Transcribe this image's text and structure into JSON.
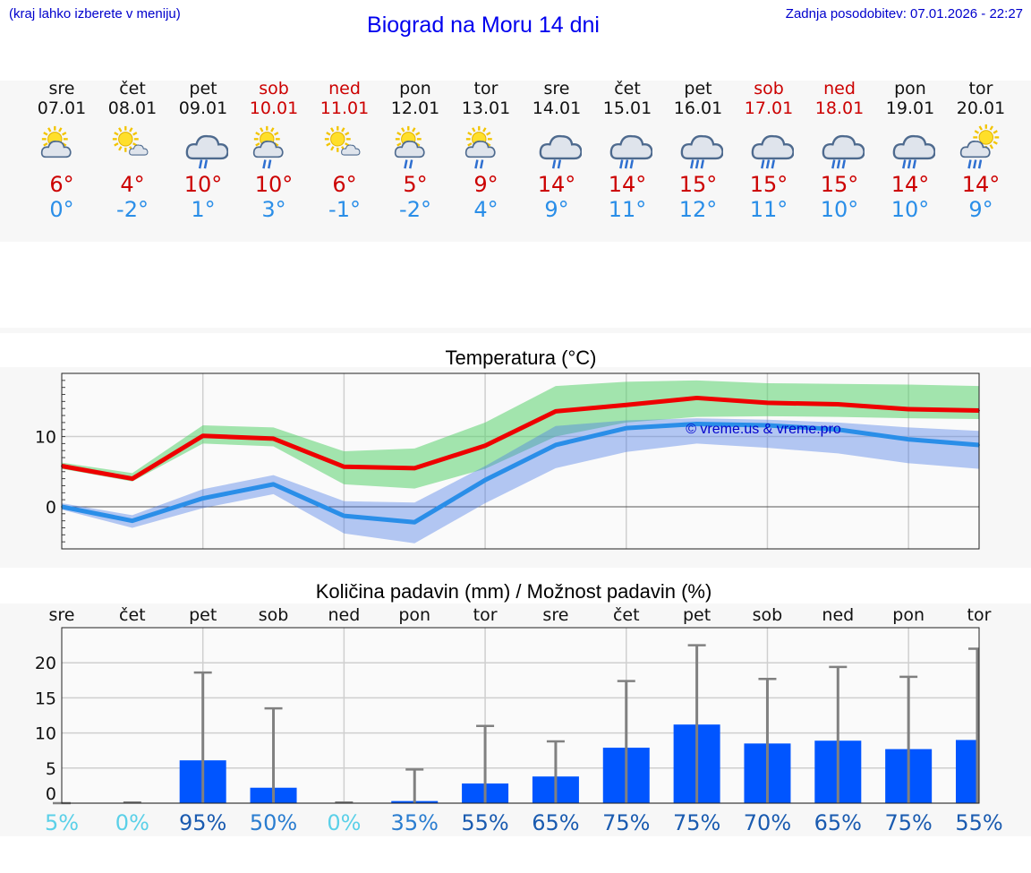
{
  "header": {
    "note_left": "(kraj lahko izberete v meniju)",
    "title": "Biograd na Moru 14 dni",
    "updated": "Zadnja posodobitev: 07.01.2026 - 22:27"
  },
  "colors": {
    "link_blue": "#0000ee",
    "max_temp": "#cc0000",
    "min_temp": "#2a8ee8",
    "bar": "#0055ff",
    "weekend": "#cc0000"
  },
  "days": [
    {
      "name": "sre",
      "date": "07.01",
      "weekend": false,
      "icon": "sun-cloud-icon",
      "max": "6°",
      "min": "0°"
    },
    {
      "name": "čet",
      "date": "08.01",
      "weekend": false,
      "icon": "sun-small-cloud-icon",
      "max": "4°",
      "min": "-2°"
    },
    {
      "name": "pet",
      "date": "09.01",
      "weekend": false,
      "icon": "cloud-rain-icon",
      "max": "10°",
      "min": "1°"
    },
    {
      "name": "sob",
      "date": "10.01",
      "weekend": true,
      "icon": "sun-cloud-rain-icon",
      "max": "10°",
      "min": "3°"
    },
    {
      "name": "ned",
      "date": "11.01",
      "weekend": true,
      "icon": "sun-small-cloud-icon",
      "max": "6°",
      "min": "-1°"
    },
    {
      "name": "pon",
      "date": "12.01",
      "weekend": false,
      "icon": "sun-cloud-rain-icon",
      "max": "5°",
      "min": "-2°"
    },
    {
      "name": "tor",
      "date": "13.01",
      "weekend": false,
      "icon": "sun-cloud-rain-icon",
      "max": "9°",
      "min": "4°"
    },
    {
      "name": "sre",
      "date": "14.01",
      "weekend": false,
      "icon": "cloud-rain-icon",
      "max": "14°",
      "min": "9°"
    },
    {
      "name": "čet",
      "date": "15.01",
      "weekend": false,
      "icon": "cloud-heavy-rain-icon",
      "max": "14°",
      "min": "11°"
    },
    {
      "name": "pet",
      "date": "16.01",
      "weekend": false,
      "icon": "cloud-heavy-rain-icon",
      "max": "15°",
      "min": "12°"
    },
    {
      "name": "sob",
      "date": "17.01",
      "weekend": true,
      "icon": "cloud-heavy-rain-icon",
      "max": "15°",
      "min": "11°"
    },
    {
      "name": "ned",
      "date": "18.01",
      "weekend": true,
      "icon": "cloud-heavy-rain-icon",
      "max": "15°",
      "min": "10°"
    },
    {
      "name": "pon",
      "date": "19.01",
      "weekend": false,
      "icon": "cloud-heavy-rain-icon",
      "max": "14°",
      "min": "10°"
    },
    {
      "name": "tor",
      "date": "20.01",
      "weekend": false,
      "icon": "sun-cloud-heavy-rain-icon",
      "max": "14°",
      "min": "9°"
    }
  ],
  "chart_data": [
    {
      "type": "line",
      "title": "Temperatura (°C)",
      "watermark": "© vreme.us & vreme.pro",
      "x": [
        "sre",
        "čet",
        "pet",
        "sob",
        "ned",
        "pon",
        "tor",
        "sre",
        "čet",
        "pet",
        "sob",
        "ned",
        "pon",
        "tor"
      ],
      "yticks": [
        0,
        10
      ],
      "ylim": [
        -6,
        19
      ],
      "series": [
        {
          "name": "max",
          "color": "#ee0000",
          "values": [
            5.8,
            4.0,
            10.1,
            9.7,
            5.7,
            5.5,
            8.7,
            13.6,
            14.5,
            15.5,
            14.8,
            14.6,
            13.9,
            13.7
          ],
          "band_low": [
            5.4,
            3.6,
            9.0,
            8.6,
            3.2,
            2.6,
            5.4,
            10.0,
            12.0,
            12.8,
            12.9,
            12.8,
            12.6,
            12.5
          ],
          "band_high": [
            6.3,
            4.8,
            11.6,
            11.3,
            7.9,
            8.3,
            12.0,
            17.2,
            17.8,
            18.0,
            17.6,
            17.5,
            17.4,
            17.2
          ]
        },
        {
          "name": "min",
          "color": "#2a8ee8",
          "values": [
            0.0,
            -2.0,
            1.2,
            3.2,
            -1.3,
            -2.2,
            3.8,
            8.8,
            11.2,
            11.8,
            11.6,
            11.0,
            9.6,
            8.8
          ],
          "band_low": [
            -0.4,
            -3.0,
            -0.2,
            1.8,
            -3.8,
            -5.2,
            0.5,
            5.5,
            7.8,
            9.0,
            8.4,
            7.6,
            6.2,
            5.4
          ],
          "band_high": [
            0.5,
            -1.2,
            2.5,
            4.5,
            0.8,
            0.6,
            5.8,
            11.5,
            12.3,
            12.6,
            12.4,
            12.0,
            11.3,
            10.8
          ]
        }
      ]
    },
    {
      "type": "bar",
      "title": "Količina padavin (mm) / Možnost padavin (%)",
      "categories": [
        "sre",
        "čet",
        "pet",
        "sob",
        "ned",
        "pon",
        "tor",
        "sre",
        "čet",
        "pet",
        "sob",
        "ned",
        "pon",
        "tor"
      ],
      "yticks": [
        0,
        5,
        10,
        15,
        20
      ],
      "ylim": [
        0,
        25
      ],
      "values": [
        0,
        0,
        6.1,
        2.2,
        0,
        0.3,
        2.8,
        3.8,
        7.9,
        11.2,
        8.5,
        8.9,
        7.7,
        9.0
      ],
      "max_values": [
        0,
        0.1,
        18.6,
        13.5,
        0.1,
        4.8,
        11.0,
        8.8,
        17.4,
        22.5,
        17.7,
        19.4,
        18.0,
        22.0
      ],
      "probabilities": [
        "5%",
        "0%",
        "95%",
        "50%",
        "0%",
        "35%",
        "55%",
        "65%",
        "75%",
        "75%",
        "70%",
        "65%",
        "75%",
        "55%"
      ],
      "prob_colors": [
        "#5bd0e8",
        "#5bd0e8",
        "#1a5bb0",
        "#2a7dd0",
        "#5bd0e8",
        "#2a7dd0",
        "#1a5bb0",
        "#1a5bb0",
        "#1a5bb0",
        "#1a5bb0",
        "#1a5bb0",
        "#1a5bb0",
        "#1a5bb0",
        "#1a5bb0"
      ]
    }
  ]
}
